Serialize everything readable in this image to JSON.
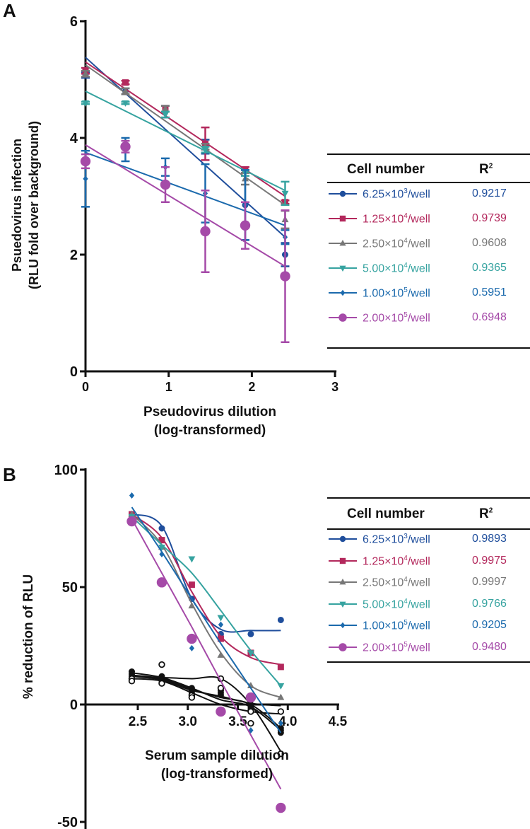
{
  "colors": {
    "s6_25e3": "#1f4e9c",
    "s1_25e4": "#b3285c",
    "s2_50e4": "#777777",
    "s5_00e4": "#36a3a0",
    "s1_00e5": "#1b6aad",
    "s2_00e5": "#a54aa8",
    "control": "#111111"
  },
  "chart_data": [
    {
      "panel": "A",
      "type": "scatter",
      "title": "",
      "xlabel": [
        "Pseudovirus dilution",
        "(log-transformed)"
      ],
      "ylabel": [
        "Psuedovirus infection",
        "(RLU fold over  background)"
      ],
      "xlim": [
        0,
        3
      ],
      "ylim": [
        0,
        6
      ],
      "xticks": [
        "0",
        "1",
        "2",
        "3"
      ],
      "yticks": [
        "0",
        "2",
        "4",
        "6"
      ],
      "x": [
        0,
        0.48,
        0.96,
        1.44,
        1.92,
        2.4
      ],
      "series": [
        {
          "name": "6.25×10³/well",
          "base": "6.25×10",
          "exp": "3",
          "r2": "0.9217",
          "marker": "circle",
          "color": "#1f4e9c",
          "values": [
            5.08,
            4.8,
            4.45,
            3.85,
            2.85,
            2.0
          ],
          "errors": [
            0.05,
            0.05,
            0.1,
            0.12,
            0.6,
            0.2
          ],
          "fit": [
            5.38,
            2.3
          ]
        },
        {
          "name": "1.25×10⁴/well",
          "base": "1.25×10",
          "exp": "4",
          "r2": "0.9739",
          "marker": "square",
          "color": "#b3285c",
          "values": [
            5.15,
            4.95,
            4.5,
            3.9,
            3.45,
            2.9
          ],
          "errors": [
            0.05,
            0.03,
            0.05,
            0.28,
            0.05,
            0.03
          ],
          "fit": [
            5.3,
            3.0
          ]
        },
        {
          "name": "2.50×10⁴/well",
          "base": "2.50×10",
          "exp": "4",
          "r2": "0.9608",
          "marker": "triangle",
          "color": "#777777",
          "values": [
            5.1,
            4.8,
            4.5,
            3.85,
            3.3,
            2.6
          ],
          "errors": [
            0.05,
            0.05,
            0.05,
            0.05,
            0.1,
            0.15
          ],
          "fit": [
            5.25,
            2.85
          ]
        },
        {
          "name": "5.00×10⁴/well",
          "base": "5.00×10",
          "exp": "4",
          "r2": "0.9365",
          "marker": "down-triangle",
          "color": "#36a3a0",
          "values": [
            4.6,
            4.6,
            4.4,
            3.8,
            3.4,
            3.05
          ],
          "errors": [
            0.02,
            0.02,
            0.05,
            0.05,
            0.05,
            0.2
          ],
          "fit": [
            4.8,
            3.1
          ]
        },
        {
          "name": "1.00×10⁵/well",
          "base": "1.00×10",
          "exp": "5",
          "r2": "0.5951",
          "marker": "diamond",
          "color": "#1b6aad",
          "values": [
            3.3,
            3.8,
            3.5,
            3.05,
            2.85,
            2.3
          ],
          "errors": [
            0.48,
            0.2,
            0.15,
            0.5,
            0.6,
            0.12
          ],
          "fit": [
            3.75,
            2.5
          ]
        },
        {
          "name": "2.00×10⁵/well",
          "base": "2.00×10",
          "exp": "5",
          "r2": "0.6948",
          "marker": "big-circle",
          "color": "#a54aa8",
          "values": [
            3.6,
            3.85,
            3.2,
            2.4,
            2.5,
            1.63
          ],
          "errors": [
            0.12,
            0.1,
            0.3,
            0.7,
            0.4,
            1.13
          ],
          "fit": [
            3.88,
            1.8
          ]
        }
      ],
      "legend": {
        "header_cell": "Cell number",
        "header_r": "R",
        "header_exp": "2",
        "placement": "right"
      }
    },
    {
      "panel": "B",
      "type": "line",
      "title": "",
      "xlabel": [
        "Serum sample dilution",
        "(log-transformed)"
      ],
      "ylabel": [
        "% reduction of  RLU"
      ],
      "xlim": [
        2.0,
        4.5
      ],
      "ylim": [
        -50,
        100
      ],
      "xticks": [
        "2.5",
        "3.0",
        "3.5",
        "4.0",
        "4.5"
      ],
      "yticks": [
        "-50",
        "0",
        "50",
        "100"
      ],
      "x": [
        2.44,
        2.74,
        3.04,
        3.33,
        3.63,
        3.93
      ],
      "series": [
        {
          "name": "6.25×10³/well",
          "base": "6.25×10",
          "exp": "3",
          "r2": "0.9893",
          "marker": "circle",
          "color": "#1f4e9c",
          "values": [
            81,
            75,
            45,
            30,
            30,
            36
          ],
          "fit": [
            81,
            76,
            45,
            32,
            31.5,
            31.5
          ]
        },
        {
          "name": "1.25×10⁴/well",
          "base": "1.25×10",
          "exp": "4",
          "r2": "0.9975",
          "marker": "square",
          "color": "#b3285c",
          "values": [
            81,
            70,
            51,
            28,
            22,
            16
          ],
          "fit": [
            81,
            71,
            48,
            29,
            20,
            17
          ]
        },
        {
          "name": "2.50×10⁴/well",
          "base": "2.50×10",
          "exp": "4",
          "r2": "0.9997",
          "marker": "triangle",
          "color": "#777777",
          "values": [
            81,
            67,
            42,
            21,
            8,
            3
          ],
          "fit": [
            81,
            68,
            43,
            22,
            8,
            3
          ]
        },
        {
          "name": "5.00×10⁴/well",
          "base": "5.00×10",
          "exp": "4",
          "r2": "0.9766",
          "marker": "down-triangle",
          "color": "#36a3a0",
          "values": [
            80,
            67,
            62,
            37,
            22,
            8
          ],
          "fit": [
            80,
            68,
            56,
            40,
            23,
            8
          ]
        },
        {
          "name": "1.00×10⁵/well",
          "base": "1.00×10",
          "exp": "5",
          "r2": "0.9205",
          "marker": "diamond",
          "color": "#1b6aad",
          "values": [
            89,
            64,
            24,
            34,
            -11,
            -8
          ],
          "fit": [
            84,
            65,
            45,
            26,
            7,
            -12
          ]
        },
        {
          "name": "2.00×10⁵/well",
          "base": "2.00×10",
          "exp": "5",
          "r2": "0.9480",
          "marker": "big-circle",
          "color": "#a54aa8",
          "values": [
            78,
            52,
            28,
            -3,
            3,
            -44
          ],
          "fit": [
            79,
            56,
            33,
            10,
            -13,
            -36
          ]
        }
      ],
      "controls": [
        {
          "marker": "filled",
          "values": [
            14,
            12,
            7,
            5,
            -2,
            -11
          ],
          "fit": [
            13.5,
            11.5,
            7,
            2,
            -1,
            -11
          ]
        },
        {
          "marker": "filled",
          "values": [
            13,
            11,
            6,
            6,
            0,
            -12
          ],
          "fit": [
            12.5,
            11,
            6.5,
            3,
            0,
            -10
          ]
        },
        {
          "marker": "filled",
          "values": [
            12,
            10,
            5,
            4,
            -1,
            -10
          ],
          "fit": [
            12,
            10.5,
            6,
            3.5,
            0.5,
            -0.5
          ]
        },
        {
          "marker": "open",
          "values": [
            11,
            17,
            4,
            11,
            -8,
            -21
          ],
          "fit": [
            12,
            11.5,
            11,
            11,
            0,
            -20
          ]
        },
        {
          "marker": "open",
          "values": [
            10,
            9,
            3,
            7,
            -3,
            -3
          ],
          "fit": [
            11,
            10,
            5,
            0,
            -3,
            -4
          ]
        }
      ],
      "legend": {
        "header_cell": "Cell number",
        "header_r": "R",
        "header_exp": "2",
        "placement": "right"
      }
    }
  ],
  "panel_labels": [
    "A",
    "B"
  ]
}
